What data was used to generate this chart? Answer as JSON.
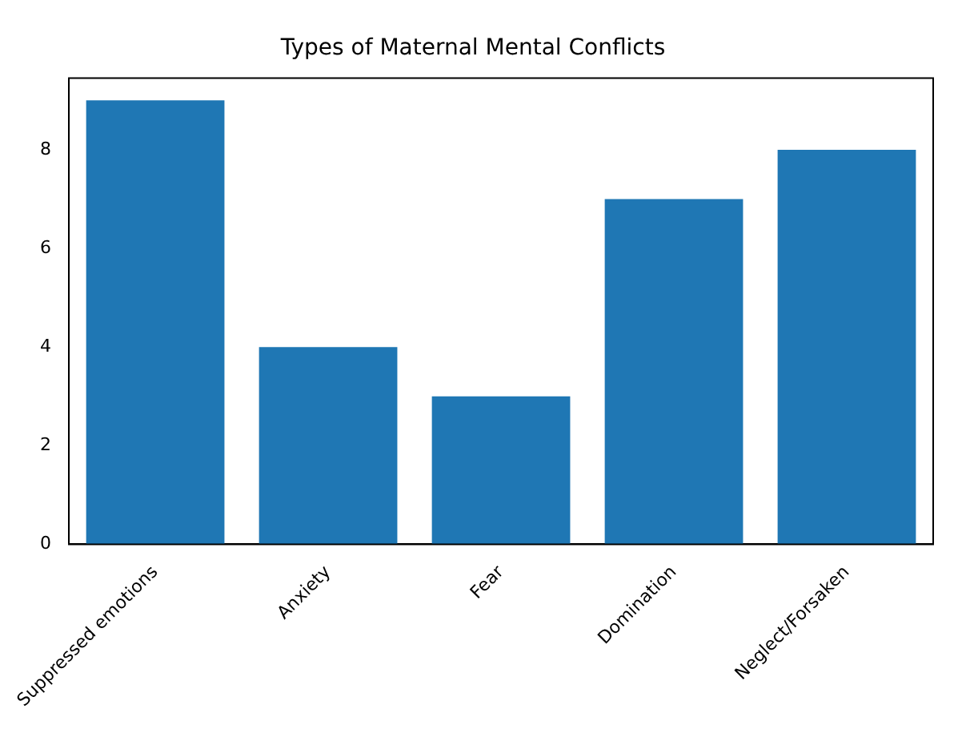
{
  "chart_data": {
    "type": "bar",
    "title": "Types of Maternal Mental Conflicts",
    "categories": [
      "Suppressed emotions",
      "Anxiety",
      "Fear",
      "Domination",
      "Neglect/Forsaken"
    ],
    "values": [
      9,
      4,
      3,
      7,
      8
    ],
    "color": "#1f77b4",
    "ylim": [
      0,
      9.45
    ],
    "yticks": [
      0,
      2,
      4,
      6,
      8
    ],
    "grid": false,
    "legend": false
  }
}
